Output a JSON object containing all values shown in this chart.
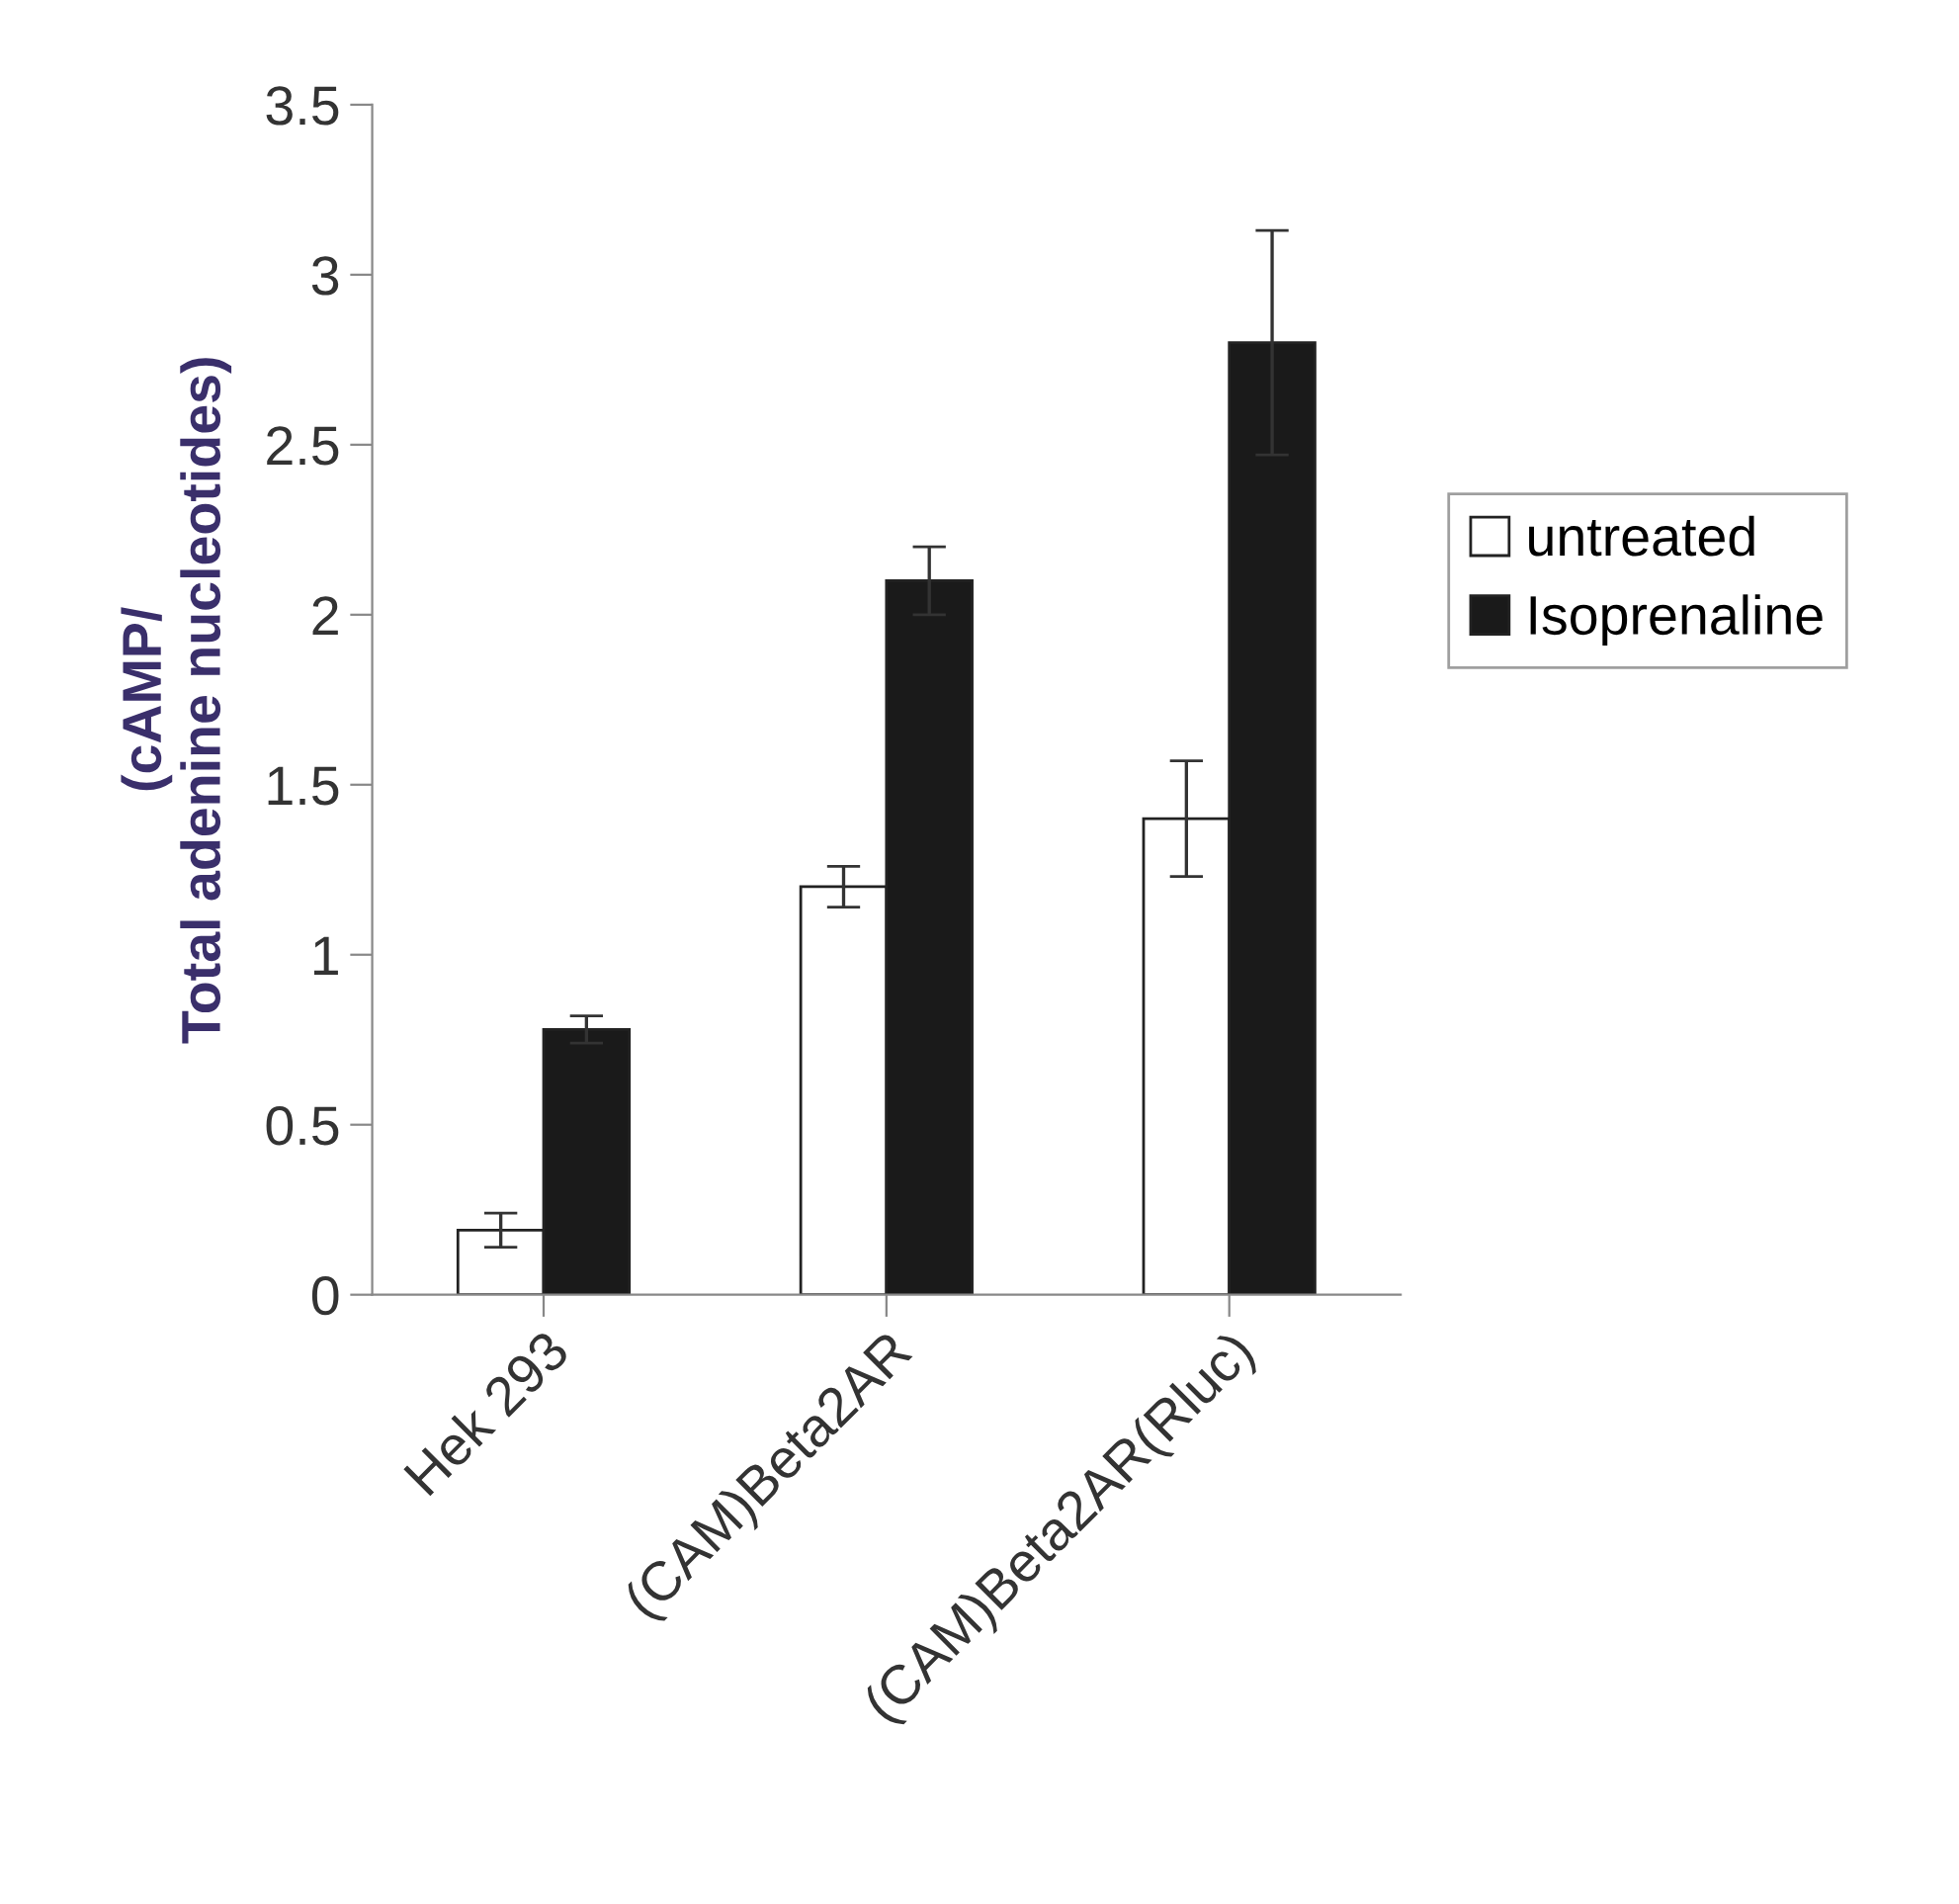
{
  "chart_data": {
    "type": "bar",
    "ylabel": "(cAMP/\nTotal adenine nucleotides)",
    "categories": [
      "Hek 293",
      "(CAM)Beta2AR",
      "(CAM)Beta2AR(Rluc)"
    ],
    "series": [
      {
        "name": "untreated",
        "color": "#ffffff",
        "values": [
          0.19,
          1.2,
          1.4
        ],
        "errors": [
          0.05,
          0.06,
          0.17
        ]
      },
      {
        "name": "Isoprenaline",
        "color": "#1a1a1a",
        "values": [
          0.78,
          2.1,
          2.8
        ],
        "errors": [
          0.04,
          0.1,
          0.33
        ]
      }
    ],
    "ylim": [
      0,
      3.5
    ],
    "yticks": [
      0,
      0.5,
      1,
      1.5,
      2,
      2.5,
      3,
      3.5
    ],
    "legend": "right",
    "grid": false
  }
}
